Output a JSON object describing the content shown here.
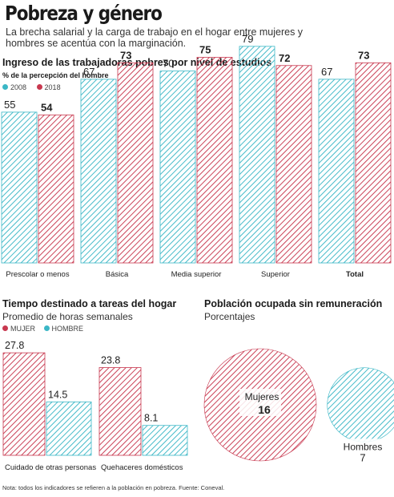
{
  "header": {
    "title": "Pobreza y género",
    "subtitle": "La brecha salarial y la carga de trabajo en el hogar entre mujeres y hombres se acentúa con la marginación."
  },
  "colors": {
    "teal": "#3bb7c6",
    "red": "#c8384f"
  },
  "note": "Nota: todos los indicadores se refieren a la población en pobreza. Fuente: Coneval.",
  "chart_data": [
    {
      "type": "bar",
      "title": "Ingreso de las trabajadoras pobres por nivel de estudios",
      "subtitle": "% de la percepción del hombre",
      "categories": [
        "Prescolar o menos",
        "Básica",
        "Media superior",
        "Superior",
        "Total"
      ],
      "series": [
        {
          "name": "2008",
          "color": "#3bb7c6",
          "values": [
            55,
            67,
            70,
            79,
            67
          ]
        },
        {
          "name": "2018",
          "color": "#c8384f",
          "values": [
            54,
            73,
            75,
            72,
            73
          ]
        }
      ],
      "ylim": [
        0,
        90
      ],
      "legend": "top-left"
    },
    {
      "type": "bar",
      "title": "Tiempo destinado a tareas del hogar",
      "subtitle": "Promedio de horas semanales",
      "categories": [
        "Cuidado de otras personas",
        "Quehaceres domésticos"
      ],
      "series": [
        {
          "name": "MUJER",
          "color": "#c8384f",
          "values": [
            27.8,
            23.8
          ]
        },
        {
          "name": "HOMBRE",
          "color": "#3bb7c6",
          "values": [
            14.5,
            8.1
          ]
        }
      ],
      "ylim": [
        0,
        30
      ],
      "legend": "top-left"
    },
    {
      "type": "bubble",
      "title": "Población ocupada sin remuneración",
      "subtitle": "Porcentajes",
      "items": [
        {
          "label": "Mujeres",
          "value": 16,
          "color": "#c8384f"
        },
        {
          "label": "Hombres",
          "value": 7,
          "color": "#3bb7c6"
        }
      ]
    }
  ]
}
